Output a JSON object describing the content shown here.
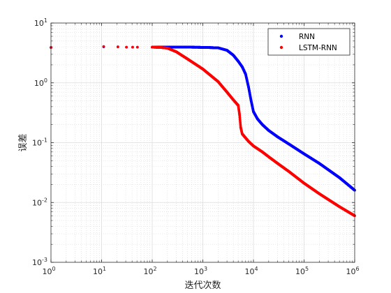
{
  "chart_data": {
    "type": "scatter",
    "xlabel": "迭代次数",
    "ylabel": "误差",
    "xscale": "log",
    "yscale": "log",
    "xlim": [
      1,
      1000000
    ],
    "ylim": [
      0.001,
      10
    ],
    "grid": true,
    "minor_grid": true,
    "legend_position": "top-right",
    "x_ticks": [
      {
        "base": "10",
        "exp": "0"
      },
      {
        "base": "10",
        "exp": "1"
      },
      {
        "base": "10",
        "exp": "2"
      },
      {
        "base": "10",
        "exp": "3"
      },
      {
        "base": "10",
        "exp": "4"
      },
      {
        "base": "10",
        "exp": "5"
      },
      {
        "base": "10",
        "exp": "6"
      }
    ],
    "y_ticks": [
      {
        "base": "10",
        "exp": "-3"
      },
      {
        "base": "10",
        "exp": "-2"
      },
      {
        "base": "10",
        "exp": "-1"
      },
      {
        "base": "10",
        "exp": "0"
      },
      {
        "base": "10",
        "exp": "1"
      }
    ],
    "series": [
      {
        "name": "RNN",
        "color": "#0000ff",
        "x": [
          1,
          11,
          21,
          31,
          41,
          51,
          100,
          200,
          500,
          1000,
          2000,
          3000,
          4000,
          5000,
          6000,
          7000,
          8000,
          9000,
          10000,
          12000,
          15000,
          20000,
          30000,
          50000,
          100000,
          200000,
          500000,
          1000000
        ],
        "y": [
          3.9,
          4.0,
          4.0,
          3.95,
          3.95,
          3.95,
          3.95,
          3.95,
          3.95,
          3.92,
          3.85,
          3.5,
          2.9,
          2.3,
          1.85,
          1.4,
          0.85,
          0.5,
          0.33,
          0.25,
          0.2,
          0.16,
          0.125,
          0.095,
          0.065,
          0.045,
          0.026,
          0.016
        ]
      },
      {
        "name": "LSTM-RNN",
        "color": "#ff0000",
        "x": [
          1,
          11,
          21,
          31,
          41,
          51,
          100,
          150,
          200,
          300,
          500,
          1000,
          2000,
          3000,
          4000,
          5000,
          5300,
          5600,
          6000,
          7000,
          8000,
          10000,
          15000,
          20000,
          30000,
          50000,
          100000,
          200000,
          500000,
          1000000
        ],
        "y": [
          3.9,
          4.05,
          4.0,
          3.95,
          3.95,
          3.95,
          3.95,
          3.9,
          3.8,
          3.3,
          2.5,
          1.7,
          1.05,
          0.7,
          0.52,
          0.42,
          0.3,
          0.18,
          0.14,
          0.12,
          0.105,
          0.088,
          0.07,
          0.058,
          0.045,
          0.033,
          0.021,
          0.014,
          0.0085,
          0.006
        ]
      }
    ]
  }
}
